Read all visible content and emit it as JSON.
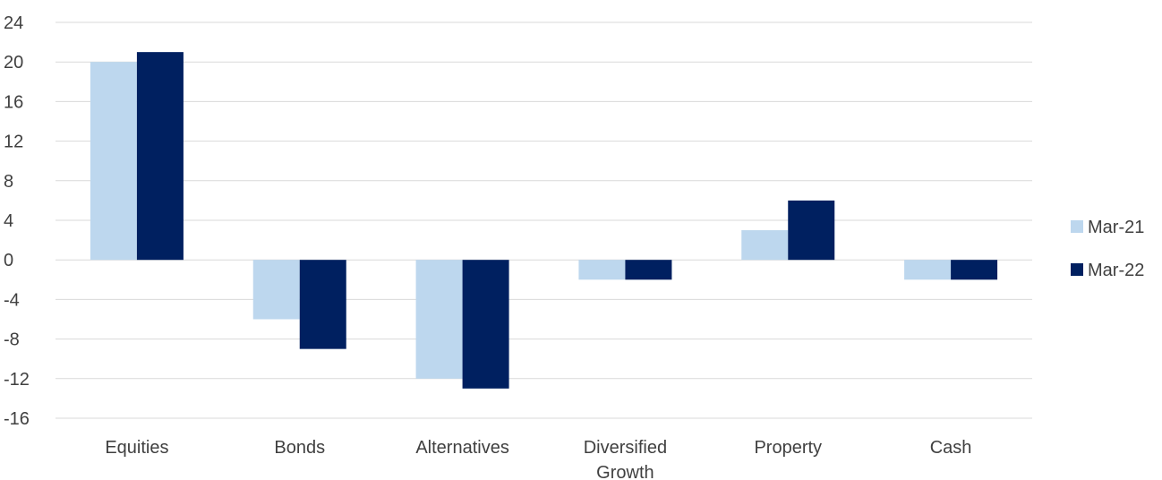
{
  "chart_data": {
    "type": "bar",
    "categories": [
      [
        "Equities"
      ],
      [
        "Bonds"
      ],
      [
        "Alternatives"
      ],
      [
        "Diversified",
        "Growth"
      ],
      [
        "Property"
      ],
      [
        "Cash"
      ]
    ],
    "series": [
      {
        "name": "Mar-21",
        "color": "#bdd7ee",
        "values": [
          20,
          -6,
          -12,
          -2,
          3,
          -2
        ]
      },
      {
        "name": "Mar-22",
        "color": "#002060",
        "values": [
          21,
          -9,
          -13,
          -2,
          6,
          -2
        ]
      }
    ],
    "yticks": [
      "24",
      "20",
      "16",
      "12",
      "8",
      "4",
      "0",
      "-4",
      "-8",
      "-12",
      "-16"
    ],
    "ylim": [
      -16,
      24
    ],
    "grid": true,
    "legend_position": "right",
    "grid_color": "#d9d9d9"
  }
}
